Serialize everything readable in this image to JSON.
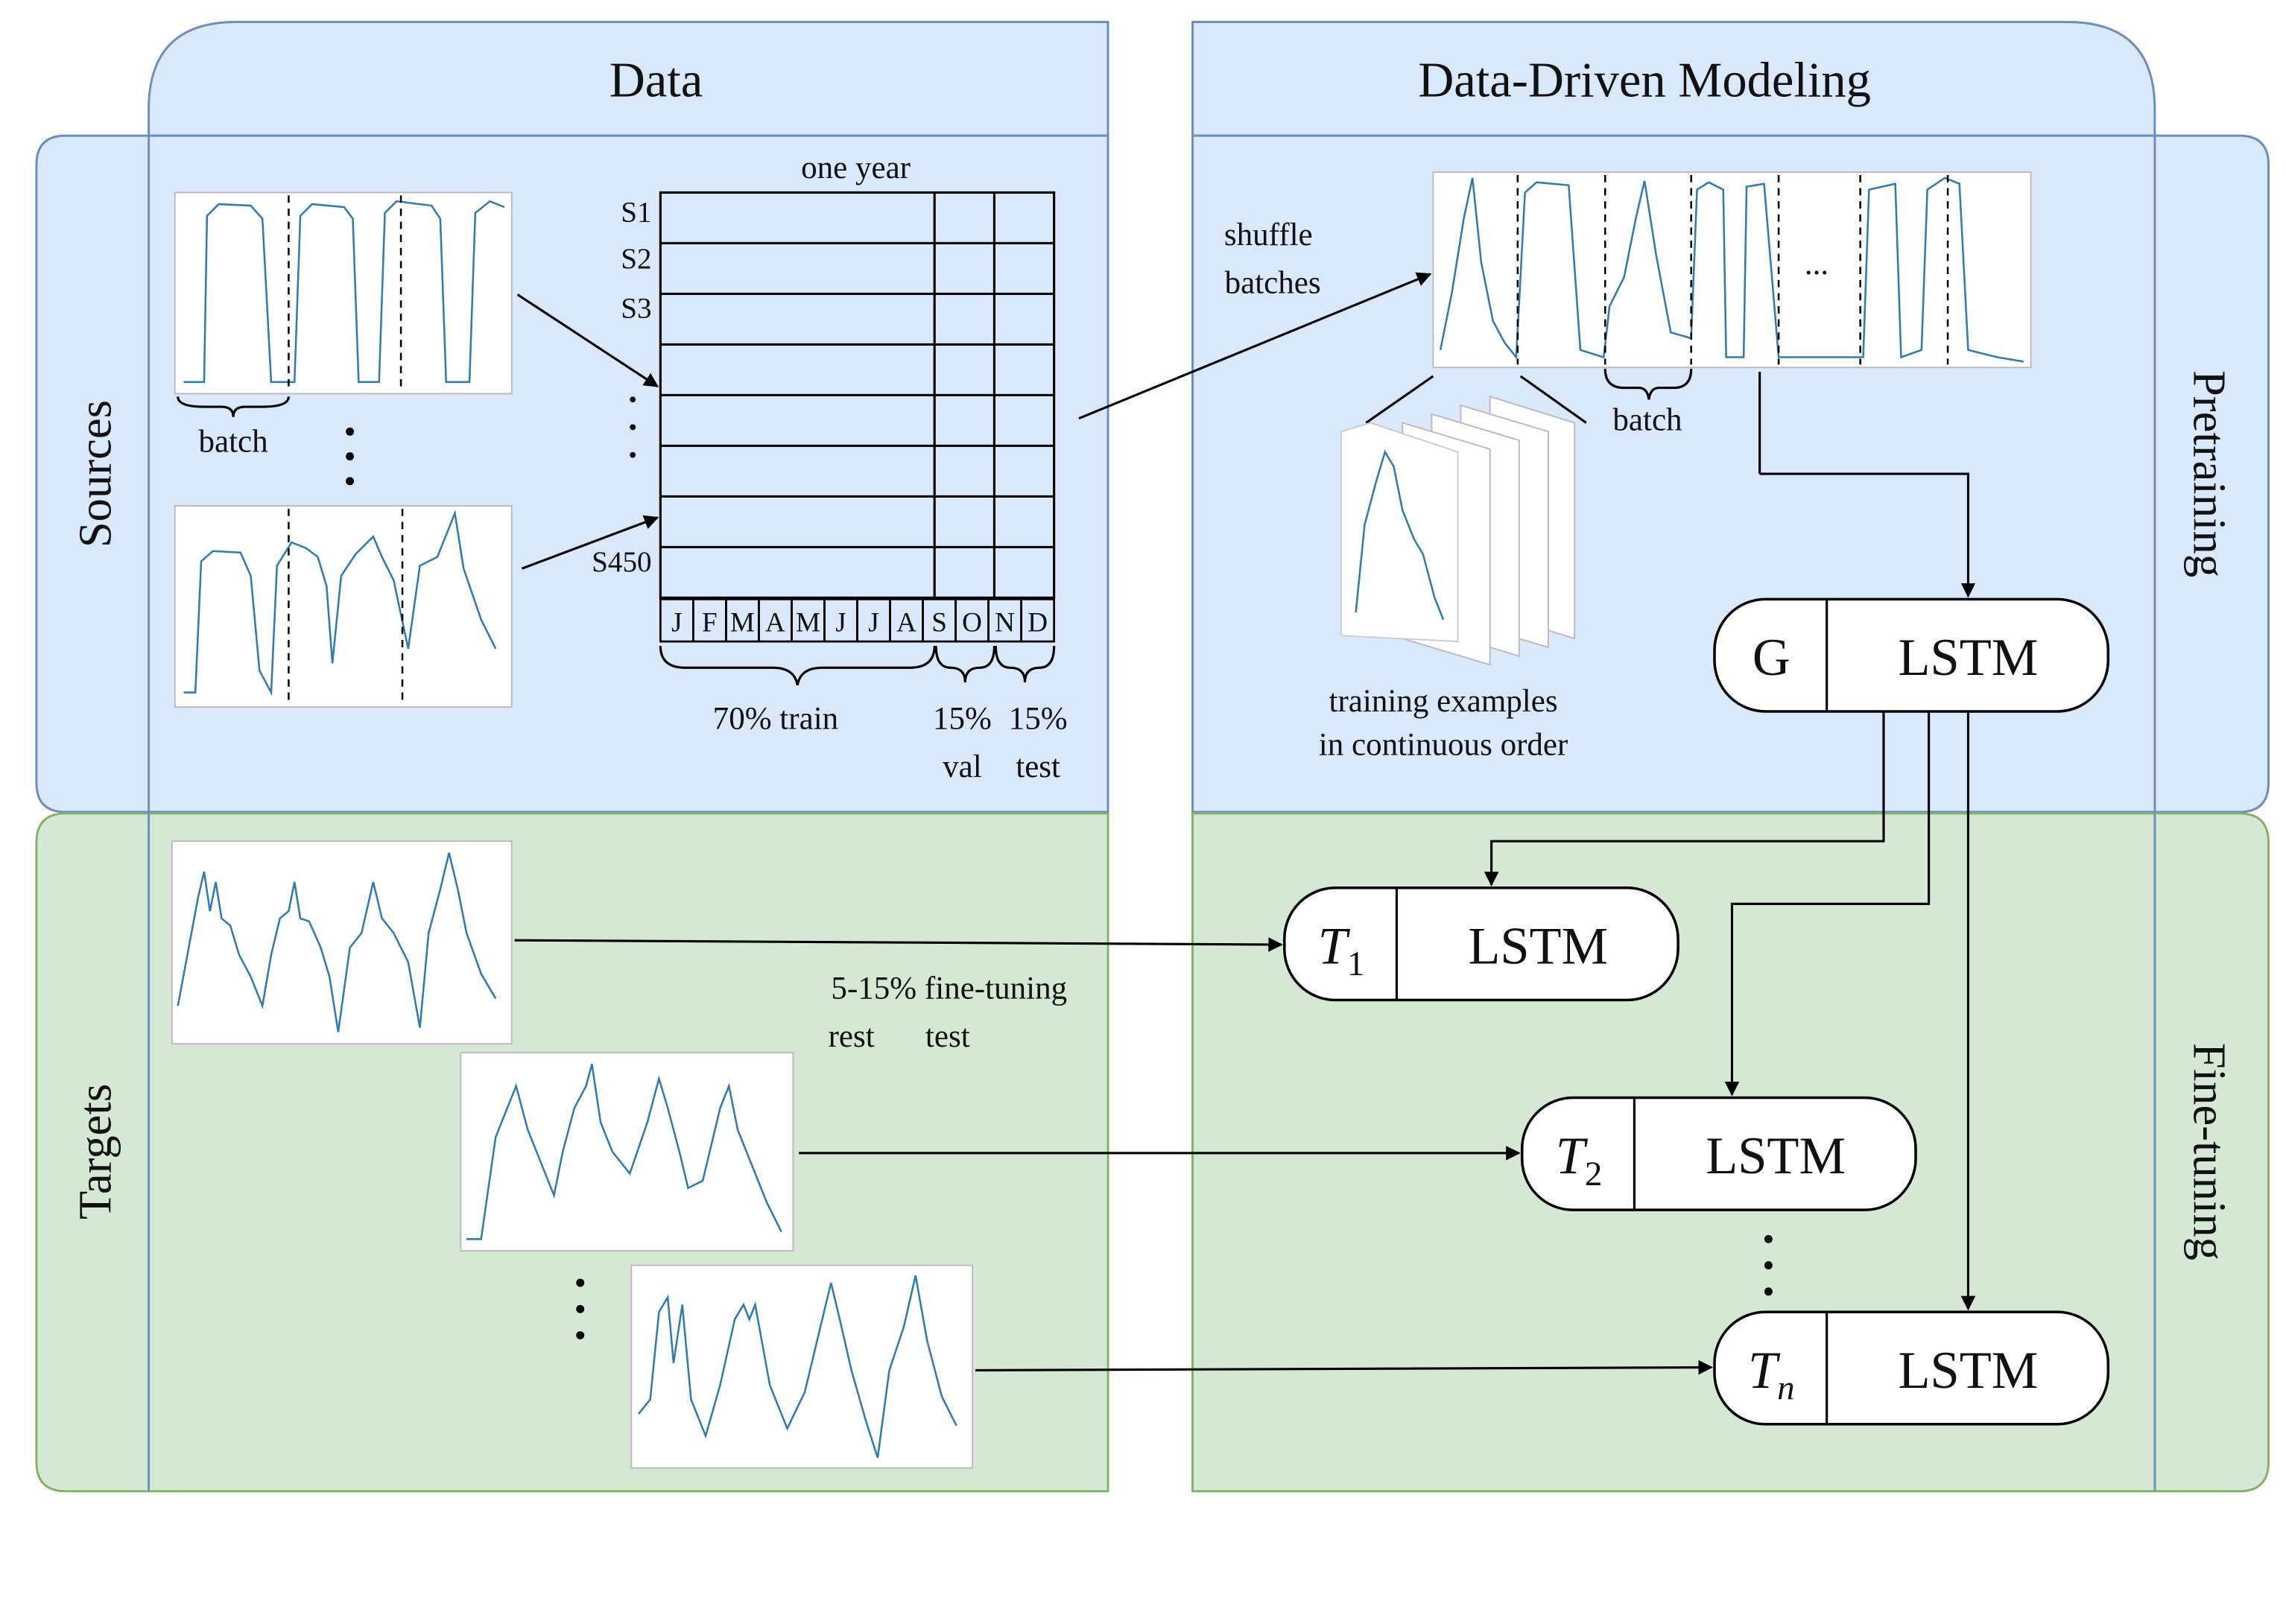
{
  "panels": {
    "data_title": "Data",
    "modeling_title": "Data-Driven Modeling",
    "sources": "Sources",
    "targets": "Targets",
    "pretraining": "Pretraining",
    "fine_tuning": "Fine-tuning"
  },
  "data": {
    "batch_label": "batch",
    "year_label": "one year",
    "rows": [
      "S1",
      "S2",
      "S3",
      "S450"
    ],
    "months": [
      "J",
      "F",
      "M",
      "A",
      "M",
      "J",
      "J",
      "A",
      "S",
      "O",
      "N",
      "D"
    ],
    "splits": {
      "train": "70% train",
      "val_pct": "15%",
      "test_pct": "15%",
      "val": "val",
      "test": "test"
    }
  },
  "modeling": {
    "shuffle": [
      "shuffle",
      "batches"
    ],
    "ellipsis": "...",
    "batch_label": "batch",
    "examples": [
      "training examples",
      "in continuous order"
    ],
    "nodes": [
      {
        "label": "G",
        "model": "LSTM"
      },
      {
        "label": "T",
        "subscript": "1",
        "model": "LSTM"
      },
      {
        "label": "T",
        "subscript": "2",
        "model": "LSTM"
      },
      {
        "label": "T",
        "subscript": "n",
        "model": "LSTM"
      }
    ]
  },
  "fine_tuning": {
    "split": "5-15% fine-tuning",
    "rest": "rest",
    "test": "test"
  }
}
